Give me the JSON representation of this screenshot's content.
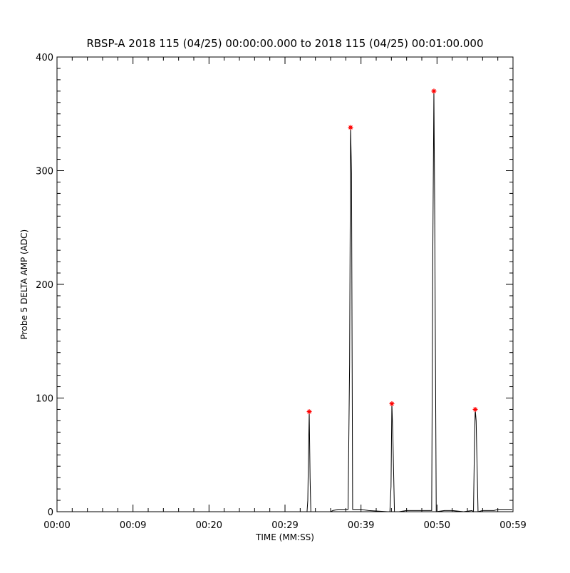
{
  "chart_data": {
    "type": "line",
    "title": "RBSP-A 2018 115 (04/25) 00:00:00.000 to 2018 115 (04/25) 00:01:00.000",
    "x_label": "TIME (MM:SS)",
    "y_label": "Probe 5 DELTA AMP (ADC)",
    "xlim": [
      0,
      60
    ],
    "xticks": [
      {
        "value": 0,
        "label": "00:00"
      },
      {
        "value": 10,
        "label": "00:09"
      },
      {
        "value": 20,
        "label": "00:20"
      },
      {
        "value": 30,
        "label": "00:29"
      },
      {
        "value": 40,
        "label": "00:39"
      },
      {
        "value": 50,
        "label": "00:50"
      },
      {
        "value": 60,
        "label": "00:59"
      }
    ],
    "ylim": [
      0,
      400
    ],
    "yticks": [
      0,
      100,
      200,
      300,
      400
    ],
    "series": [
      {
        "color": "#000000",
        "marker": "none",
        "x": [
          0,
          32.9,
          33.0,
          33.1,
          33.19,
          33.3,
          33.4,
          35.0,
          36.0,
          36.3,
          37.0,
          38.3,
          38.5,
          38.63,
          38.75,
          38.9,
          40.0,
          41.0,
          43.5,
          43.8,
          43.95,
          44.06,
          44.2,
          44.4,
          45.0,
          46.0,
          49.3,
          49.45,
          49.59,
          49.7,
          49.9,
          51.0,
          52.0,
          53.5,
          54.6,
          54.8,
          54.93,
          55.03,
          55.15,
          55.4,
          56.0,
          57.5,
          58.0,
          59.9
        ],
        "values": [
          0,
          0,
          10,
          55,
          88,
          30,
          0,
          0,
          0,
          1,
          2,
          2,
          130,
          338,
          298,
          2,
          2,
          1,
          0,
          0,
          22,
          95,
          65,
          0,
          0,
          1,
          1,
          230,
          370,
          260,
          0,
          1,
          1,
          0,
          1,
          0,
          60,
          90,
          80,
          0,
          1,
          1,
          2,
          2
        ]
      },
      {
        "color": "#ff0000",
        "marker": "asterisk",
        "x": [
          33.19,
          38.63,
          44.06,
          49.59,
          55.03
        ],
        "values": [
          88,
          338,
          95,
          370,
          90
        ]
      }
    ]
  }
}
